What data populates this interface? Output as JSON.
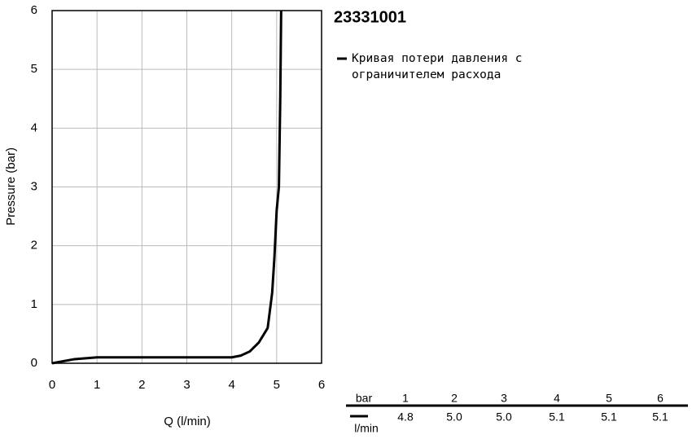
{
  "chart_data": {
    "type": "line",
    "title": "23331001",
    "x_label": "Q (l/min)",
    "y_label": "Pressure (bar)",
    "xlim": [
      0,
      6
    ],
    "ylim": [
      0,
      6
    ],
    "xticks": [
      0,
      1,
      2,
      3,
      4,
      5,
      6
    ],
    "yticks": [
      0,
      1,
      2,
      3,
      4,
      5,
      6
    ],
    "grid": true,
    "series": [
      {
        "name": "Кривая потери давления с ограничителем расхода",
        "color": "#000000",
        "x": [
          0,
          0.5,
          1,
          4,
          4.2,
          4.4,
          4.6,
          4.8,
          4.9,
          4.95,
          5.0,
          5.05,
          5.08,
          5.1
        ],
        "values": [
          0,
          0.07,
          0.1,
          0.1,
          0.13,
          0.2,
          0.35,
          0.6,
          1.2,
          1.8,
          2.6,
          3.0,
          4.5,
          6
        ]
      }
    ]
  },
  "table": {
    "header": [
      "bar",
      "1",
      "2",
      "3",
      "4",
      "5",
      "6"
    ],
    "rows": [
      [
        "l/min",
        "4.8",
        "5.0",
        "5.0",
        "5.1",
        "5.1",
        "5.1"
      ]
    ]
  }
}
